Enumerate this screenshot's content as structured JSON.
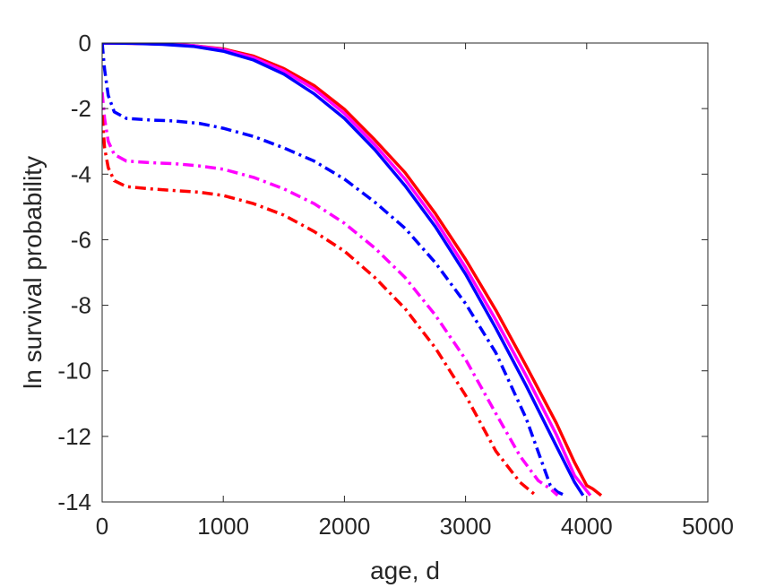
{
  "chart_data": {
    "type": "line",
    "xlabel": "age, d",
    "ylabel": "ln survival probability",
    "xlim": [
      0,
      5000
    ],
    "ylim": [
      -14,
      0
    ],
    "xticks": [
      0,
      1000,
      2000,
      3000,
      4000,
      5000
    ],
    "yticks": [
      0,
      -2,
      -4,
      -6,
      -8,
      -10,
      -12,
      -14
    ],
    "xtick_labels": [
      "0",
      "1000",
      "2000",
      "3000",
      "4000",
      "5000"
    ],
    "ytick_labels": [
      "0",
      "-2",
      "-4",
      "-6",
      "-8",
      "-10",
      "-12",
      "-14"
    ],
    "grid": false,
    "series": [
      {
        "color": "#ff0000",
        "style": "solid",
        "x": [
          0,
          250,
          500,
          750,
          1000,
          1250,
          1500,
          1750,
          2000,
          2250,
          2500,
          2750,
          3000,
          3250,
          3500,
          3750,
          3900,
          4000,
          4050,
          4120
        ],
        "y": [
          0,
          -0.01,
          -0.03,
          -0.08,
          -0.18,
          -0.4,
          -0.78,
          -1.3,
          -2.02,
          -2.95,
          -3.95,
          -5.2,
          -6.6,
          -8.15,
          -9.85,
          -11.6,
          -12.8,
          -13.5,
          -13.6,
          -13.8
        ]
      },
      {
        "color": "#ff00ff",
        "style": "solid",
        "x": [
          0,
          250,
          500,
          750,
          1000,
          1250,
          1500,
          1750,
          2000,
          2250,
          2500,
          2750,
          3000,
          3250,
          3500,
          3750,
          3900,
          4030
        ],
        "y": [
          0,
          -0.01,
          -0.03,
          -0.08,
          -0.2,
          -0.45,
          -0.85,
          -1.4,
          -2.15,
          -3.1,
          -4.15,
          -5.4,
          -6.85,
          -8.45,
          -10.15,
          -11.95,
          -13.2,
          -13.8
        ]
      },
      {
        "color": "#0000ff",
        "style": "solid",
        "x": [
          0,
          250,
          500,
          750,
          1000,
          1250,
          1500,
          1750,
          2000,
          2250,
          2500,
          2750,
          3000,
          3250,
          3500,
          3750,
          3900,
          3970
        ],
        "y": [
          0,
          -0.01,
          -0.04,
          -0.1,
          -0.25,
          -0.52,
          -0.95,
          -1.55,
          -2.3,
          -3.25,
          -4.35,
          -5.6,
          -7.05,
          -8.7,
          -10.45,
          -12.3,
          -13.4,
          -13.8
        ]
      },
      {
        "color": "#0000ff",
        "style": "dashdot",
        "x": [
          0,
          20,
          50,
          100,
          200,
          400,
          600,
          800,
          1000,
          1250,
          1500,
          1750,
          2000,
          2250,
          2500,
          2750,
          3000,
          3250,
          3500,
          3700,
          3760,
          3820
        ],
        "y": [
          0,
          -0.8,
          -1.6,
          -2.1,
          -2.3,
          -2.35,
          -2.38,
          -2.45,
          -2.6,
          -2.85,
          -3.2,
          -3.6,
          -4.15,
          -4.85,
          -5.65,
          -6.7,
          -7.95,
          -9.45,
          -11.45,
          -13.5,
          -13.7,
          -13.8
        ]
      },
      {
        "color": "#ff00ff",
        "style": "dashdot",
        "x": [
          0,
          20,
          50,
          100,
          200,
          400,
          600,
          800,
          1000,
          1250,
          1500,
          1750,
          2000,
          2250,
          2500,
          2750,
          3000,
          3250,
          3450,
          3600,
          3700,
          3760
        ],
        "y": [
          -1.5,
          -2.3,
          -3.0,
          -3.4,
          -3.6,
          -3.65,
          -3.68,
          -3.75,
          -3.85,
          -4.1,
          -4.45,
          -4.9,
          -5.5,
          -6.25,
          -7.15,
          -8.3,
          -9.65,
          -11.3,
          -12.6,
          -13.35,
          -13.6,
          -13.8
        ]
      },
      {
        "color": "#ff0000",
        "style": "dashdot",
        "x": [
          0,
          20,
          50,
          100,
          200,
          400,
          600,
          800,
          1000,
          1250,
          1500,
          1750,
          2000,
          2250,
          2500,
          2750,
          3000,
          3250,
          3450,
          3580
        ],
        "y": [
          -2.2,
          -3.2,
          -3.8,
          -4.2,
          -4.38,
          -4.45,
          -4.5,
          -4.55,
          -4.65,
          -4.9,
          -5.25,
          -5.75,
          -6.35,
          -7.15,
          -8.1,
          -9.3,
          -10.75,
          -12.45,
          -13.4,
          -13.8
        ]
      }
    ]
  }
}
